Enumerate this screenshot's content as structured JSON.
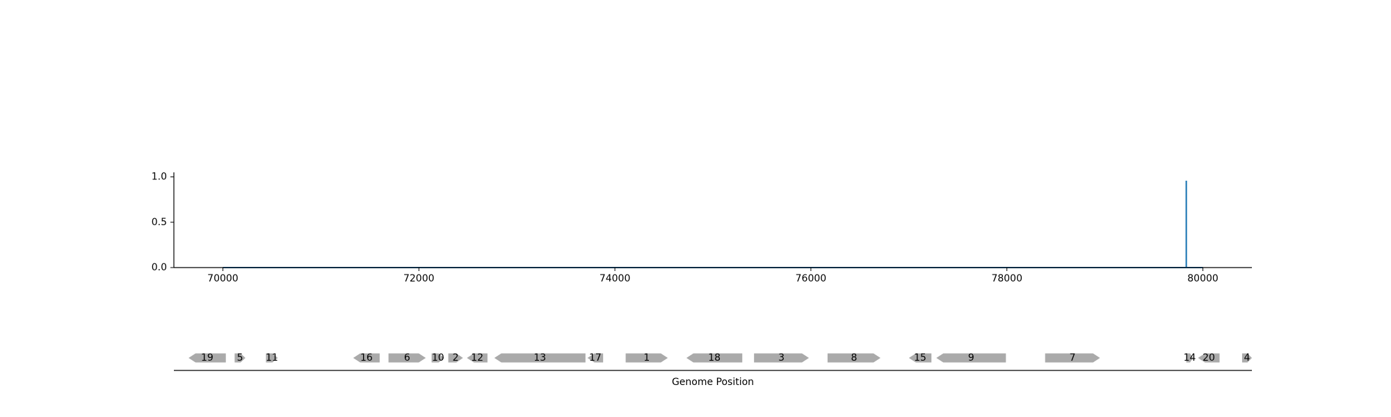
{
  "chart_data": [
    {
      "type": "line",
      "title": "",
      "xlabel": "",
      "ylabel": "",
      "xlim": [
        69500,
        80500
      ],
      "ylim": [
        0,
        1.05
      ],
      "x_ticks": [
        70000,
        72000,
        74000,
        76000,
        78000,
        80000
      ],
      "y_ticks": [
        0.0,
        0.5,
        1.0
      ],
      "y_tick_labels": [
        "0.0",
        "0.5",
        "1.0"
      ],
      "grid": false,
      "series": [
        {
          "color": "#1f77b4",
          "points": [
            [
              70000,
              0
            ],
            [
              79830,
              0
            ],
            [
              79830,
              0.95
            ],
            [
              79831,
              0.95
            ],
            [
              79831,
              0
            ],
            [
              80000,
              0
            ]
          ]
        }
      ]
    },
    {
      "type": "gene_map",
      "xlabel": "Genome Position",
      "xlim": [
        69500,
        80500
      ],
      "gene_color": "#aaaaaa",
      "genes": [
        {
          "label": "19",
          "start": 69650,
          "end": 70030,
          "strand": "-"
        },
        {
          "label": "5",
          "start": 70120,
          "end": 70230,
          "strand": "+"
        },
        {
          "label": "11",
          "start": 70440,
          "end": 70560,
          "strand": "+"
        },
        {
          "label": "16",
          "start": 71330,
          "end": 71600,
          "strand": "-"
        },
        {
          "label": "6",
          "start": 71690,
          "end": 72070,
          "strand": "+"
        },
        {
          "label": "10",
          "start": 72130,
          "end": 72260,
          "strand": "+"
        },
        {
          "label": "2",
          "start": 72300,
          "end": 72450,
          "strand": "+"
        },
        {
          "label": "12",
          "start": 72490,
          "end": 72700,
          "strand": "-"
        },
        {
          "label": "13",
          "start": 72770,
          "end": 73700,
          "strand": "-"
        },
        {
          "label": "17",
          "start": 73720,
          "end": 73880,
          "strand": "-"
        },
        {
          "label": "1",
          "start": 74110,
          "end": 74540,
          "strand": "+"
        },
        {
          "label": "18",
          "start": 74730,
          "end": 75300,
          "strand": "-"
        },
        {
          "label": "3",
          "start": 75420,
          "end": 75980,
          "strand": "+"
        },
        {
          "label": "8",
          "start": 76170,
          "end": 76710,
          "strand": "+"
        },
        {
          "label": "15",
          "start": 77000,
          "end": 77230,
          "strand": "-"
        },
        {
          "label": "9",
          "start": 77280,
          "end": 77990,
          "strand": "-"
        },
        {
          "label": "7",
          "start": 78390,
          "end": 78950,
          "strand": "+"
        },
        {
          "label": "14",
          "start": 79830,
          "end": 79900,
          "strand": "+"
        },
        {
          "label": "20",
          "start": 79950,
          "end": 80170,
          "strand": "-"
        },
        {
          "label": "4",
          "start": 80400,
          "end": 80500,
          "strand": "+"
        }
      ]
    }
  ]
}
